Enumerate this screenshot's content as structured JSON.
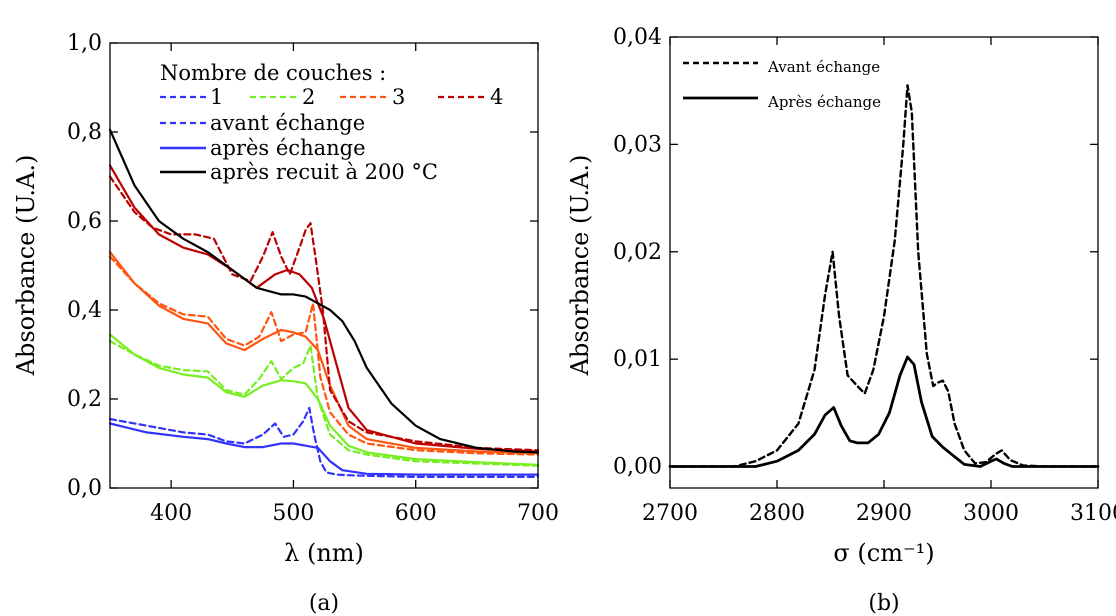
{
  "chart_data": [
    {
      "type": "line",
      "caption": "(a)",
      "xlabel": "λ (nm)",
      "ylabel": "Absorbance (U.A.)",
      "xlim": [
        350,
        700
      ],
      "ylim": [
        0,
        1.0
      ],
      "xticks": [
        400,
        500,
        600,
        700
      ],
      "xtick_labels": [
        "400",
        "500",
        "600",
        "700"
      ],
      "yticks": [
        0,
        0.2,
        0.4,
        0.6,
        0.8,
        1.0
      ],
      "ytick_labels": [
        "0,0",
        "0,2",
        "0,4",
        "0,6",
        "0,8",
        "1,0"
      ],
      "grid": false,
      "legend_placement": "top-right",
      "legend": {
        "title": "Nombre de couches :",
        "layer_entries": [
          {
            "label": "1",
            "color": "#3333ff"
          },
          {
            "label": "2",
            "color": "#77ee22"
          },
          {
            "label": "3",
            "color": "#ff5511"
          },
          {
            "label": "4",
            "color": "#bb0000"
          }
        ],
        "style_entries": [
          {
            "label": "avant échange",
            "style": "dashed",
            "color": "#3333ff"
          },
          {
            "label": "après échange",
            "style": "solid",
            "color": "#3333ff"
          },
          {
            "label": "après recuit à 200 °C",
            "style": "solid",
            "color": "#000000"
          }
        ]
      },
      "series": [
        {
          "name": "1",
          "style": "dashed",
          "color": "#3333ff",
          "x": [
            350,
            380,
            410,
            430,
            445,
            460,
            475,
            485,
            492,
            500,
            508,
            513,
            517,
            522,
            527,
            535,
            550,
            600,
            650,
            700
          ],
          "y": [
            0.155,
            0.14,
            0.125,
            0.12,
            0.105,
            0.1,
            0.12,
            0.145,
            0.115,
            0.12,
            0.15,
            0.18,
            0.12,
            0.06,
            0.035,
            0.03,
            0.028,
            0.025,
            0.025,
            0.025
          ]
        },
        {
          "name": "1",
          "style": "solid",
          "color": "#3333ff",
          "x": [
            350,
            380,
            410,
            430,
            445,
            460,
            475,
            490,
            500,
            510,
            520,
            530,
            540,
            560,
            600,
            650,
            700
          ],
          "y": [
            0.145,
            0.125,
            0.115,
            0.11,
            0.1,
            0.092,
            0.092,
            0.1,
            0.1,
            0.095,
            0.09,
            0.06,
            0.04,
            0.032,
            0.03,
            0.03,
            0.03
          ]
        },
        {
          "name": "2",
          "style": "dashed",
          "color": "#77ee22",
          "x": [
            350,
            370,
            390,
            410,
            430,
            445,
            460,
            472,
            482,
            490,
            500,
            508,
            514,
            520,
            530,
            545,
            560,
            600,
            650,
            700
          ],
          "y": [
            0.33,
            0.3,
            0.275,
            0.265,
            0.262,
            0.22,
            0.21,
            0.245,
            0.285,
            0.245,
            0.27,
            0.28,
            0.32,
            0.2,
            0.12,
            0.085,
            0.075,
            0.06,
            0.055,
            0.05
          ]
        },
        {
          "name": "2",
          "style": "solid",
          "color": "#77ee22",
          "x": [
            350,
            370,
            390,
            410,
            430,
            445,
            460,
            475,
            490,
            500,
            510,
            520,
            530,
            545,
            560,
            600,
            650,
            700
          ],
          "y": [
            0.345,
            0.3,
            0.27,
            0.255,
            0.248,
            0.215,
            0.205,
            0.23,
            0.242,
            0.24,
            0.235,
            0.2,
            0.14,
            0.095,
            0.08,
            0.065,
            0.058,
            0.052
          ]
        },
        {
          "name": "3",
          "style": "dashed",
          "color": "#ff5511",
          "x": [
            350,
            370,
            390,
            410,
            430,
            445,
            460,
            472,
            482,
            490,
            500,
            510,
            516,
            522,
            530,
            545,
            560,
            600,
            650,
            700
          ],
          "y": [
            0.52,
            0.46,
            0.415,
            0.39,
            0.385,
            0.335,
            0.32,
            0.34,
            0.395,
            0.33,
            0.345,
            0.35,
            0.415,
            0.25,
            0.17,
            0.12,
            0.1,
            0.085,
            0.078,
            0.075
          ]
        },
        {
          "name": "3",
          "style": "solid",
          "color": "#ff5511",
          "x": [
            350,
            370,
            390,
            410,
            430,
            445,
            460,
            475,
            490,
            500,
            510,
            520,
            530,
            545,
            560,
            600,
            650,
            700
          ],
          "y": [
            0.53,
            0.46,
            0.41,
            0.38,
            0.37,
            0.325,
            0.31,
            0.335,
            0.355,
            0.35,
            0.34,
            0.31,
            0.23,
            0.14,
            0.11,
            0.09,
            0.082,
            0.078
          ]
        },
        {
          "name": "4",
          "style": "dashed",
          "color": "#bb0000",
          "x": [
            350,
            370,
            385,
            400,
            420,
            435,
            450,
            465,
            475,
            483,
            490,
            497,
            505,
            510,
            514,
            518,
            524,
            530,
            545,
            560,
            600,
            650,
            700
          ],
          "y": [
            0.7,
            0.62,
            0.585,
            0.57,
            0.57,
            0.56,
            0.48,
            0.465,
            0.52,
            0.575,
            0.52,
            0.48,
            0.54,
            0.58,
            0.595,
            0.52,
            0.4,
            0.22,
            0.15,
            0.125,
            0.105,
            0.09,
            0.085
          ]
        },
        {
          "name": "4",
          "style": "solid",
          "color": "#bb0000",
          "x": [
            350,
            370,
            390,
            410,
            430,
            450,
            470,
            485,
            495,
            505,
            515,
            525,
            535,
            545,
            560,
            600,
            650,
            700
          ],
          "y": [
            0.725,
            0.63,
            0.57,
            0.54,
            0.525,
            0.49,
            0.45,
            0.48,
            0.49,
            0.48,
            0.45,
            0.38,
            0.28,
            0.18,
            0.13,
            0.1,
            0.088,
            0.082
          ]
        },
        {
          "name": "après recuit à 200 °C",
          "style": "solid",
          "color": "#000000",
          "x": [
            350,
            370,
            390,
            410,
            430,
            450,
            470,
            490,
            500,
            510,
            520,
            530,
            540,
            550,
            560,
            580,
            600,
            620,
            650,
            680,
            700
          ],
          "y": [
            0.805,
            0.68,
            0.6,
            0.56,
            0.53,
            0.49,
            0.45,
            0.435,
            0.435,
            0.43,
            0.415,
            0.4,
            0.375,
            0.33,
            0.27,
            0.19,
            0.14,
            0.11,
            0.09,
            0.082,
            0.08
          ]
        }
      ]
    },
    {
      "type": "line",
      "caption": "(b)",
      "xlabel": "σ (cm⁻¹)",
      "ylabel": "Absorbance (U.A.)",
      "xlim": [
        2700,
        3100
      ],
      "ylim": [
        -0.002,
        0.04
      ],
      "xticks": [
        2700,
        2800,
        2900,
        3000,
        3100
      ],
      "xtick_labels": [
        "2700",
        "2800",
        "2900",
        "3000",
        "3100"
      ],
      "yticks": [
        0,
        0.01,
        0.02,
        0.03,
        0.04
      ],
      "ytick_labels": [
        "0,00",
        "0,01",
        "0,02",
        "0,03",
        "0,04"
      ],
      "grid": false,
      "legend_placement": "top-left",
      "series": [
        {
          "name": "Avant échange",
          "style": "dashed",
          "color": "#000000",
          "x": [
            2700,
            2760,
            2780,
            2800,
            2820,
            2835,
            2845,
            2852,
            2858,
            2866,
            2875,
            2882,
            2890,
            2900,
            2910,
            2918,
            2922,
            2926,
            2932,
            2940,
            2946,
            2950,
            2955,
            2960,
            2966,
            2975,
            2985,
            2995,
            3005,
            3010,
            3018,
            3030,
            3050,
            3100
          ],
          "y": [
            0,
            0,
            0.0005,
            0.0015,
            0.004,
            0.009,
            0.016,
            0.02,
            0.014,
            0.0085,
            0.0075,
            0.0068,
            0.009,
            0.014,
            0.021,
            0.03,
            0.0355,
            0.033,
            0.02,
            0.0105,
            0.0075,
            0.0078,
            0.008,
            0.007,
            0.004,
            0.0015,
            0.0003,
            0.0004,
            0.0012,
            0.0015,
            0.0006,
            0.0001,
            0,
            0
          ]
        },
        {
          "name": "Après échange",
          "style": "solid",
          "color": "#000000",
          "x": [
            2700,
            2780,
            2800,
            2820,
            2835,
            2845,
            2853,
            2860,
            2868,
            2875,
            2885,
            2895,
            2905,
            2915,
            2922,
            2928,
            2935,
            2945,
            2955,
            2965,
            2975,
            2990,
            3000,
            3005,
            3012,
            3020,
            3040,
            3100
          ],
          "y": [
            0,
            0,
            0.0005,
            0.0015,
            0.003,
            0.0048,
            0.0055,
            0.0038,
            0.0024,
            0.0022,
            0.0022,
            0.003,
            0.005,
            0.0085,
            0.0102,
            0.0095,
            0.006,
            0.0028,
            0.0018,
            0.001,
            0.0002,
            0,
            0.0005,
            0.0007,
            0.0003,
            0,
            0,
            0
          ]
        }
      ]
    }
  ]
}
